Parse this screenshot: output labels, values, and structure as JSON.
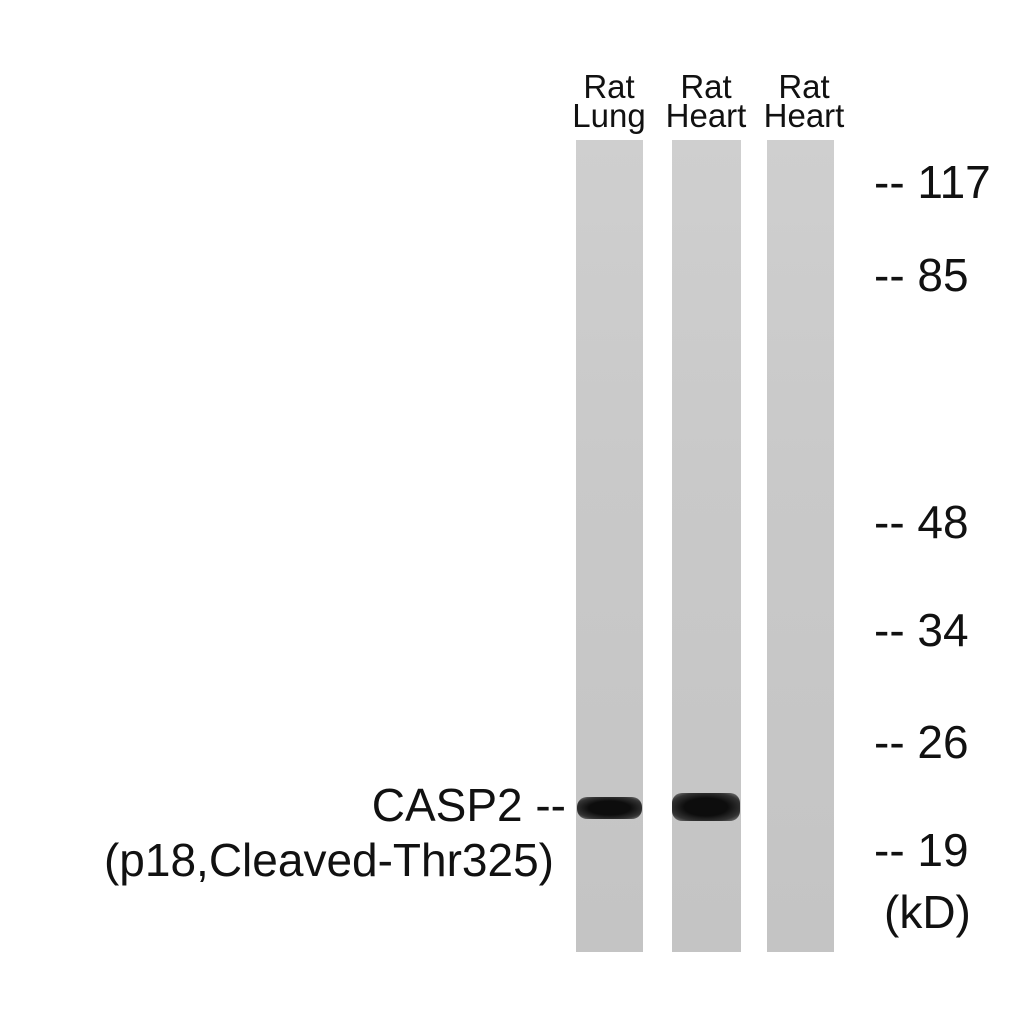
{
  "lanes": [
    {
      "line1": "Rat",
      "line2": "Lung"
    },
    {
      "line1": "Rat",
      "line2": "Heart"
    },
    {
      "line1": "Rat",
      "line2": "Heart"
    }
  ],
  "markers": [
    "-- 117",
    "-- 85",
    "-- 48",
    "-- 34",
    "-- 26",
    "-- 19"
  ],
  "unit": "(kD)",
  "protein": {
    "line1": "CASP2 --",
    "line2": "(p18,Cleaved-Thr325)"
  }
}
